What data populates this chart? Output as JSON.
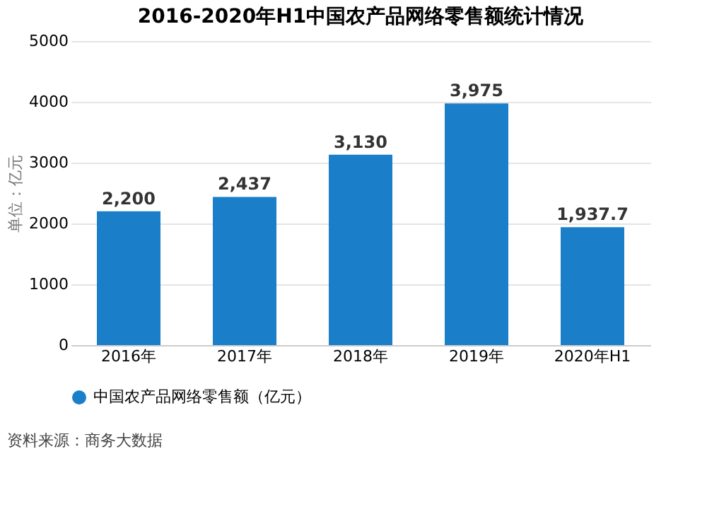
{
  "chart_data": {
    "type": "bar",
    "title": "2016-2020年H1中国农产品网络零售额统计情况",
    "ylabel": "单位：亿元",
    "categories": [
      "2016年",
      "2017年",
      "2018年",
      "2019年",
      "2020年H1"
    ],
    "series": [
      {
        "name": "中国农产品网络零售额（亿元）",
        "color": "#1a7fc8",
        "values": [
          2200,
          2437,
          3130,
          3975,
          1937.7
        ]
      }
    ],
    "value_labels": [
      "2,200",
      "2,437",
      "3,130",
      "3,975",
      "1,937.7"
    ],
    "ylim": [
      0,
      5000
    ],
    "yticks": [
      0,
      1000,
      2000,
      3000,
      4000,
      5000
    ],
    "grid": "y",
    "legend": "bottom",
    "annotations": [
      "资料来源：商务大数据"
    ]
  }
}
